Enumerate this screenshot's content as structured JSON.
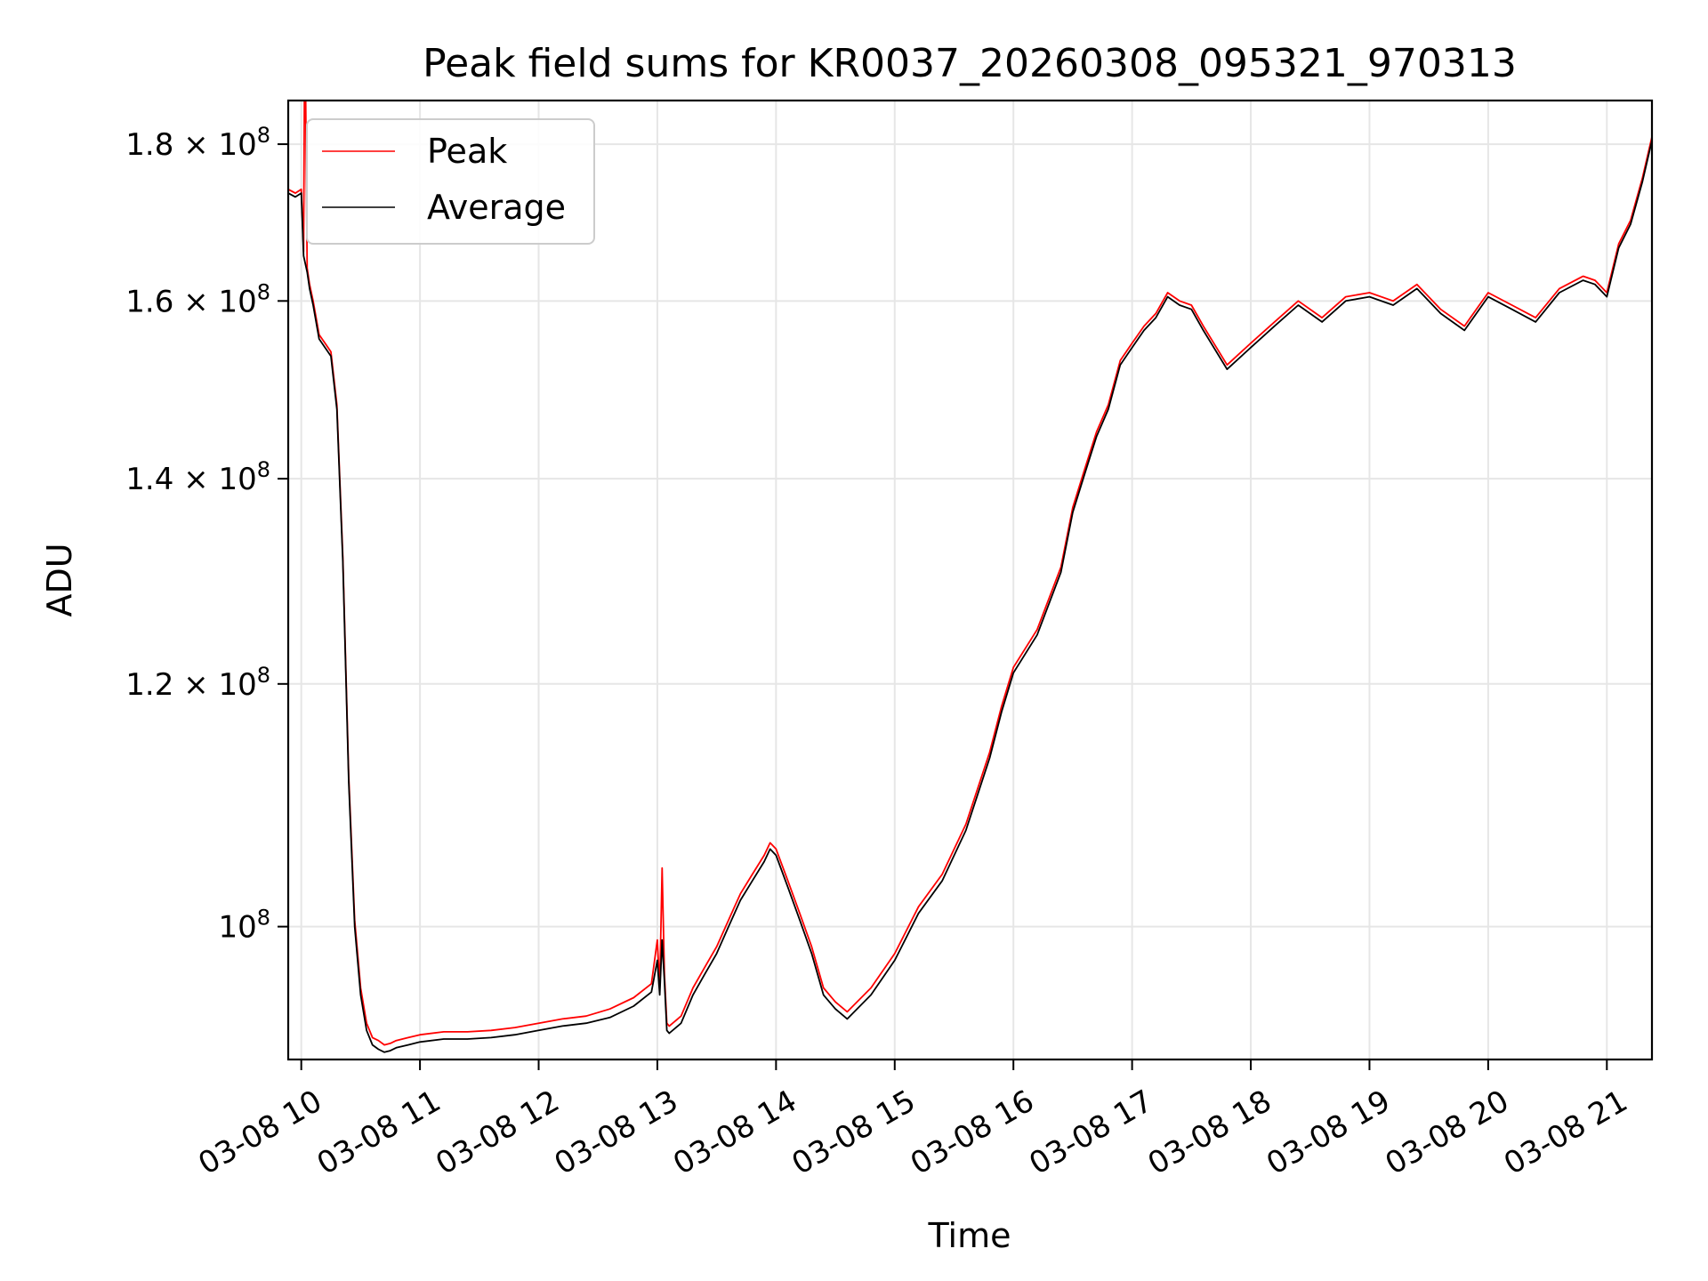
{
  "chart_data": {
    "type": "line",
    "title": "Peak field sums for KR0037_20260308_095321_970313",
    "xlabel": "Time",
    "ylabel": "ADU",
    "x_unit": "hour of 2026-03-08",
    "xlim": [
      9.89,
      21.38
    ],
    "ylim": [
      90500000,
      186000000
    ],
    "y_scale": "log",
    "grid": true,
    "legend_position": "upper-left",
    "x_ticks": [
      {
        "value": 10,
        "label": "03-08 10"
      },
      {
        "value": 11,
        "label": "03-08 11"
      },
      {
        "value": 12,
        "label": "03-08 12"
      },
      {
        "value": 13,
        "label": "03-08 13"
      },
      {
        "value": 14,
        "label": "03-08 14"
      },
      {
        "value": 15,
        "label": "03-08 15"
      },
      {
        "value": 16,
        "label": "03-08 16"
      },
      {
        "value": 17,
        "label": "03-08 17"
      },
      {
        "value": 18,
        "label": "03-08 18"
      },
      {
        "value": 19,
        "label": "03-08 19"
      },
      {
        "value": 20,
        "label": "03-08 20"
      },
      {
        "value": 21,
        "label": "03-08 21"
      }
    ],
    "y_ticks": [
      {
        "value": 100000000,
        "mantissa": "",
        "exponent": "8"
      },
      {
        "value": 120000000,
        "mantissa": "1.2",
        "exponent": "8"
      },
      {
        "value": 140000000,
        "mantissa": "1.4",
        "exponent": "8"
      },
      {
        "value": 160000000,
        "mantissa": "1.6",
        "exponent": "8"
      },
      {
        "value": 180000000,
        "mantissa": "1.8",
        "exponent": "8"
      }
    ],
    "series": [
      {
        "name": "Peak",
        "color": "#ff0000",
        "x": [
          9.89,
          9.95,
          10.0,
          10.02,
          10.03,
          10.05,
          10.07,
          10.1,
          10.15,
          10.2,
          10.25,
          10.3,
          10.35,
          10.4,
          10.45,
          10.5,
          10.55,
          10.6,
          10.65,
          10.7,
          10.75,
          10.8,
          10.9,
          11.0,
          11.2,
          11.4,
          11.6,
          11.8,
          12.0,
          12.2,
          12.4,
          12.6,
          12.8,
          12.95,
          13.0,
          13.02,
          13.04,
          13.06,
          13.08,
          13.1,
          13.2,
          13.3,
          13.4,
          13.5,
          13.6,
          13.7,
          13.8,
          13.9,
          13.95,
          14.0,
          14.1,
          14.2,
          14.3,
          14.4,
          14.5,
          14.6,
          14.8,
          15.0,
          15.2,
          15.4,
          15.6,
          15.8,
          15.9,
          16.0,
          16.2,
          16.4,
          16.5,
          16.6,
          16.7,
          16.8,
          16.9,
          17.0,
          17.1,
          17.2,
          17.3,
          17.4,
          17.5,
          17.6,
          17.8,
          18.0,
          18.2,
          18.4,
          18.6,
          18.8,
          19.0,
          19.2,
          19.4,
          19.6,
          19.8,
          20.0,
          20.2,
          20.4,
          20.6,
          20.8,
          20.9,
          21.0,
          21.1,
          21.2,
          21.3,
          21.38
        ],
        "y": [
          174000000,
          173500000,
          174000000,
          166000000,
          200000000,
          164000000,
          162000000,
          160000000,
          156000000,
          155000000,
          154000000,
          148000000,
          132000000,
          112000000,
          100500000,
          95500000,
          93000000,
          92000000,
          91800000,
          91500000,
          91600000,
          91800000,
          92000000,
          92200000,
          92400000,
          92400000,
          92500000,
          92700000,
          93000000,
          93300000,
          93500000,
          94000000,
          94800000,
          95800000,
          99000000,
          95500000,
          104500000,
          96500000,
          93000000,
          92800000,
          93500000,
          95500000,
          97000000,
          98500000,
          100500000,
          102500000,
          104000000,
          105500000,
          106500000,
          106000000,
          103500000,
          101000000,
          98500000,
          95500000,
          94500000,
          93800000,
          95500000,
          98000000,
          101500000,
          104000000,
          108000000,
          114000000,
          118000000,
          121500000,
          125000000,
          131000000,
          137000000,
          141000000,
          145000000,
          148000000,
          153000000,
          155000000,
          157000000,
          158500000,
          161000000,
          160000000,
          159500000,
          157000000,
          152500000,
          155000000,
          157500000,
          160000000,
          158000000,
          160500000,
          161000000,
          160000000,
          162000000,
          159000000,
          157000000,
          161000000,
          159500000,
          158000000,
          161500000,
          163000000,
          162500000,
          161000000,
          167000000,
          170000000,
          175500000,
          181000000
        ]
      },
      {
        "name": "Average",
        "color": "#000000",
        "x": [
          9.89,
          9.95,
          10.0,
          10.02,
          10.05,
          10.07,
          10.1,
          10.15,
          10.2,
          10.25,
          10.3,
          10.35,
          10.4,
          10.45,
          10.5,
          10.55,
          10.6,
          10.65,
          10.7,
          10.75,
          10.8,
          10.9,
          11.0,
          11.2,
          11.4,
          11.6,
          11.8,
          12.0,
          12.2,
          12.4,
          12.6,
          12.8,
          12.95,
          13.0,
          13.02,
          13.04,
          13.06,
          13.08,
          13.1,
          13.2,
          13.3,
          13.4,
          13.5,
          13.6,
          13.7,
          13.8,
          13.9,
          13.95,
          14.0,
          14.1,
          14.2,
          14.3,
          14.4,
          14.5,
          14.6,
          14.8,
          15.0,
          15.2,
          15.4,
          15.6,
          15.8,
          15.9,
          16.0,
          16.2,
          16.4,
          16.5,
          16.6,
          16.7,
          16.8,
          16.9,
          17.0,
          17.1,
          17.2,
          17.3,
          17.4,
          17.5,
          17.6,
          17.8,
          18.0,
          18.2,
          18.4,
          18.6,
          18.8,
          19.0,
          19.2,
          19.4,
          19.6,
          19.8,
          20.0,
          20.2,
          20.4,
          20.6,
          20.8,
          20.9,
          21.0,
          21.1,
          21.2,
          21.3,
          21.38
        ],
        "y": [
          173500000,
          173000000,
          173500000,
          165500000,
          163500000,
          161500000,
          159500000,
          155500000,
          154500000,
          153500000,
          147500000,
          131500000,
          111500000,
          100000000,
          95000000,
          92500000,
          91500000,
          91200000,
          91000000,
          91100000,
          91300000,
          91500000,
          91700000,
          91900000,
          91900000,
          92000000,
          92200000,
          92500000,
          92800000,
          93000000,
          93400000,
          94200000,
          95200000,
          97500000,
          95000000,
          99000000,
          96000000,
          92500000,
          92300000,
          93000000,
          95000000,
          96500000,
          98000000,
          100000000,
          102000000,
          103500000,
          105000000,
          106000000,
          105500000,
          103000000,
          100500000,
          98000000,
          95000000,
          94000000,
          93300000,
          95000000,
          97500000,
          101000000,
          103500000,
          107500000,
          113500000,
          117500000,
          121000000,
          124500000,
          130500000,
          136500000,
          140500000,
          144500000,
          147500000,
          152500000,
          154500000,
          156500000,
          158000000,
          160500000,
          159500000,
          159000000,
          156500000,
          152000000,
          154500000,
          157000000,
          159500000,
          157500000,
          160000000,
          160500000,
          159500000,
          161500000,
          158500000,
          156500000,
          160500000,
          159000000,
          157500000,
          161000000,
          162500000,
          162000000,
          160500000,
          166500000,
          169500000,
          175000000,
          180500000
        ]
      }
    ]
  }
}
